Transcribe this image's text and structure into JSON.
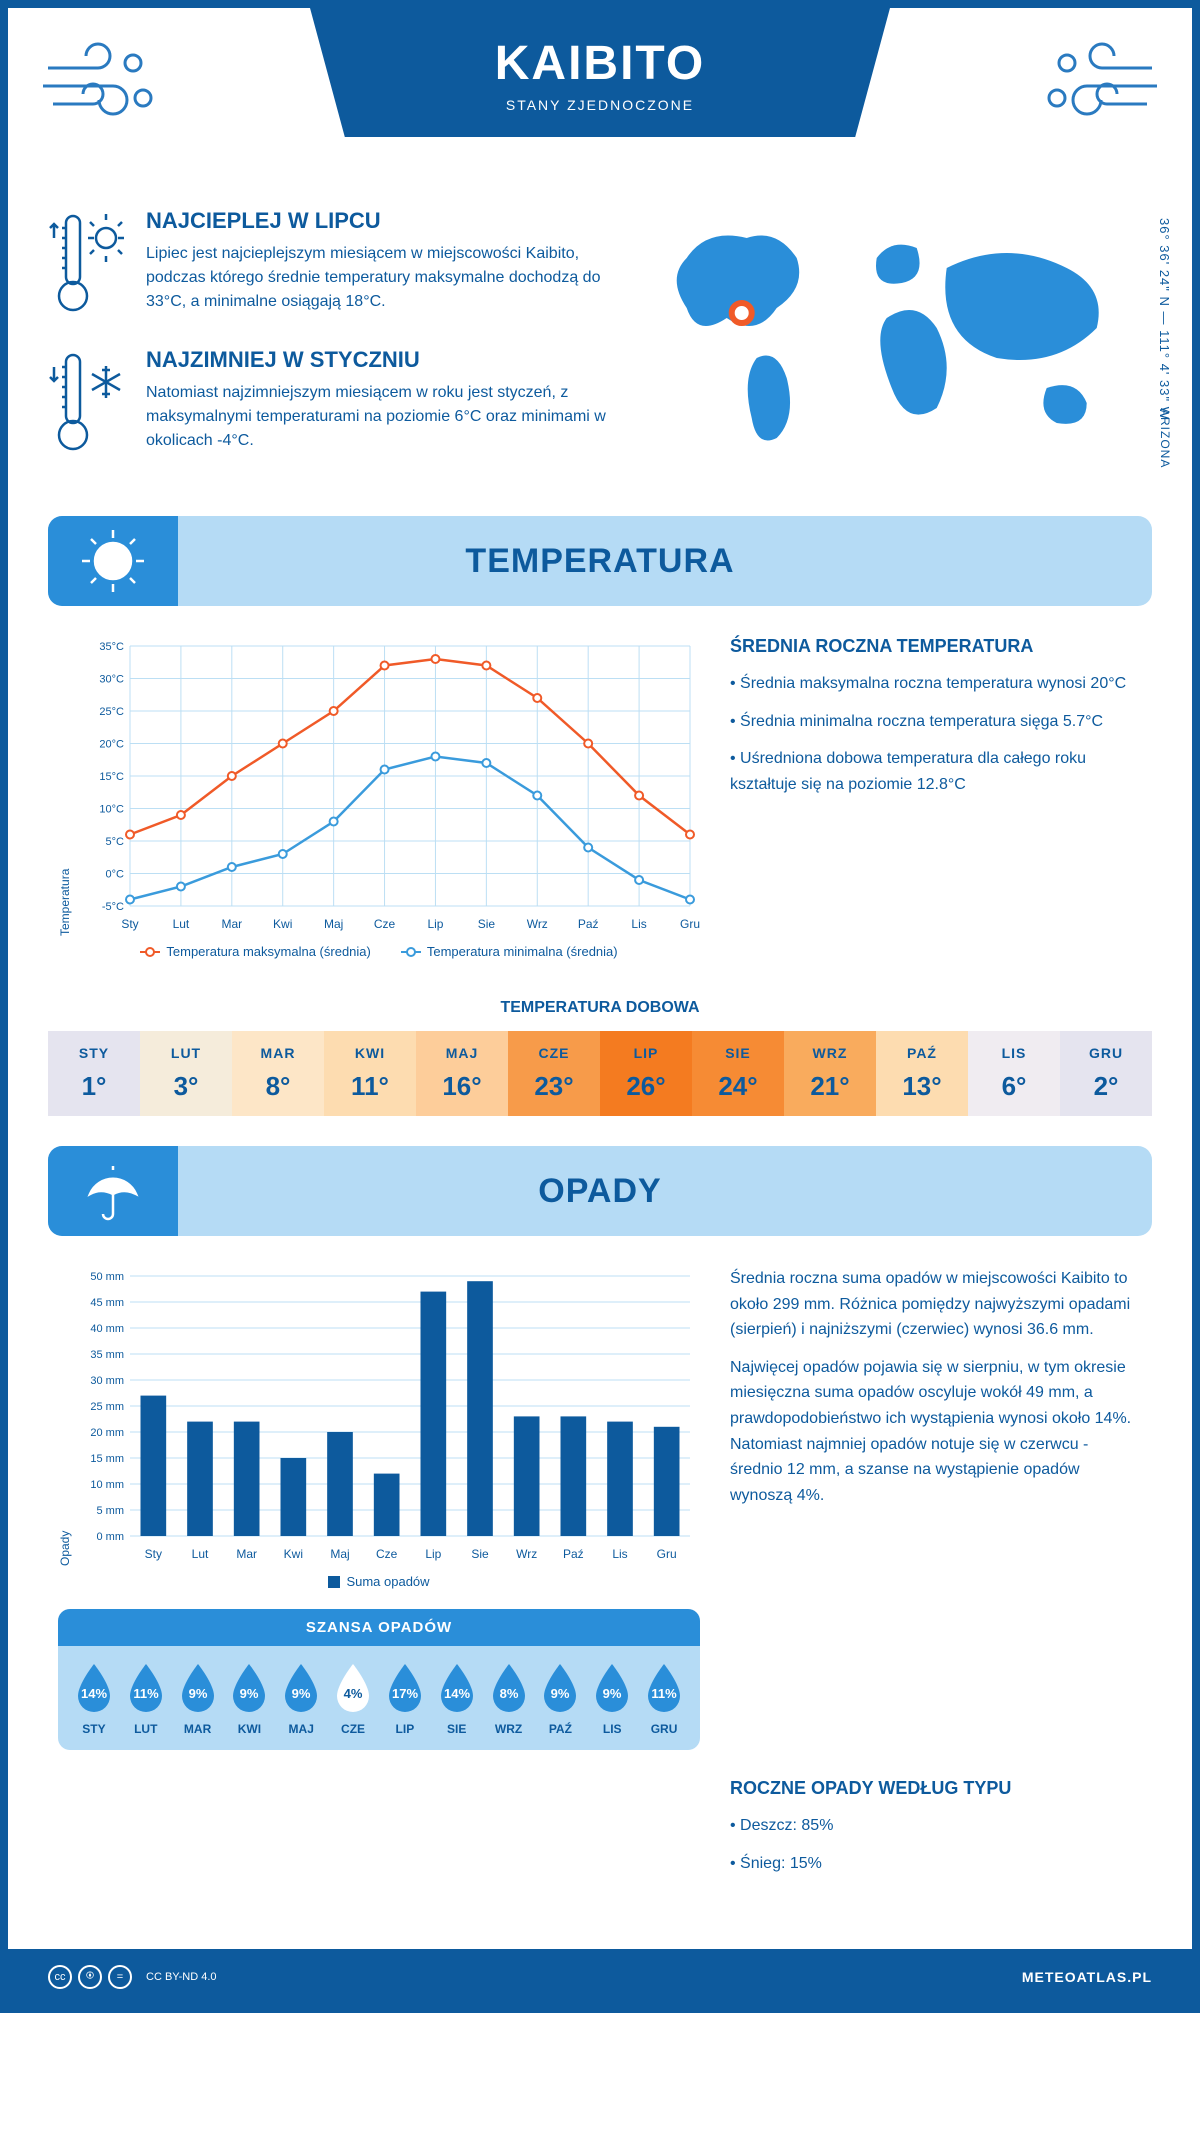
{
  "header": {
    "title": "KAIBITO",
    "subtitle": "STANY ZJEDNOCZONE"
  },
  "coords": "36° 36' 24\" N — 111° 4' 33\" W",
  "region": "ARIZONA",
  "hottest": {
    "title": "NAJCIEPLEJ W LIPCU",
    "body": "Lipiec jest najcieplejszym miesiącem w miejscowości Kaibito, podczas którego średnie temperatury maksymalne dochodzą do 33°C, a minimalne osiągają 18°C."
  },
  "coldest": {
    "title": "NAJZIMNIEJ W STYCZNIU",
    "body": "Natomiast najzimniejszym miesiącem w roku jest styczeń, z maksymalnymi temperaturami na poziomie 6°C oraz minimami w okolicach -4°C."
  },
  "temp_section": {
    "title": "TEMPERATURA",
    "chart": {
      "y_label": "Temperatura",
      "y_ticks": [
        "-5°C",
        "0°C",
        "5°C",
        "10°C",
        "15°C",
        "20°C",
        "25°C",
        "30°C",
        "35°C"
      ],
      "y_min": -5,
      "y_max": 35,
      "months": [
        "Sty",
        "Lut",
        "Mar",
        "Kwi",
        "Maj",
        "Cze",
        "Lip",
        "Sie",
        "Wrz",
        "Paź",
        "Lis",
        "Gru"
      ],
      "max_series": [
        6,
        9,
        15,
        20,
        25,
        32,
        33,
        32,
        27,
        20,
        12,
        6
      ],
      "min_series": [
        -4,
        -2,
        1,
        3,
        8,
        16,
        18,
        17,
        12,
        4,
        -1,
        -4
      ],
      "max_color": "#f05a28",
      "min_color": "#3a9bdc",
      "grid_color": "#bcdff4",
      "legend_max": "Temperatura maksymalna (średnia)",
      "legend_min": "Temperatura minimalna (średnia)"
    },
    "avg_title": "ŚREDNIA ROCZNA TEMPERATURA",
    "avg_bullets": [
      "• Średnia maksymalna roczna temperatura wynosi 20°C",
      "• Średnia minimalna roczna temperatura sięga 5.7°C",
      "• Uśredniona dobowa temperatura dla całego roku kształtuje się na poziomie 12.8°C"
    ],
    "dobowa_title": "TEMPERATURA DOBOWA",
    "dobowa": {
      "months": [
        "STY",
        "LUT",
        "MAR",
        "KWI",
        "MAJ",
        "CZE",
        "LIP",
        "SIE",
        "WRZ",
        "PAŹ",
        "LIS",
        "GRU"
      ],
      "values": [
        "1°",
        "3°",
        "8°",
        "11°",
        "16°",
        "23°",
        "26°",
        "24°",
        "21°",
        "13°",
        "6°",
        "2°"
      ],
      "colors": [
        "#e5e4ef",
        "#f5ecdb",
        "#fde6c7",
        "#fddcb0",
        "#fdcd9a",
        "#f79b4a",
        "#f47b20",
        "#f68b34",
        "#f9ab5d",
        "#fddcb0",
        "#f0ecf1",
        "#e5e4ef"
      ]
    }
  },
  "rain_section": {
    "title": "OPADY",
    "chart": {
      "y_label": "Opady",
      "y_ticks": [
        "0 mm",
        "5 mm",
        "10 mm",
        "15 mm",
        "20 mm",
        "25 mm",
        "30 mm",
        "35 mm",
        "40 mm",
        "45 mm",
        "50 mm"
      ],
      "y_max": 50,
      "months": [
        "Sty",
        "Lut",
        "Mar",
        "Kwi",
        "Maj",
        "Cze",
        "Lip",
        "Sie",
        "Wrz",
        "Paź",
        "Lis",
        "Gru"
      ],
      "values": [
        27,
        22,
        22,
        15,
        20,
        12,
        47,
        49,
        23,
        23,
        22,
        21
      ],
      "bar_color": "#0d5a9d",
      "grid_color": "#bcdff4",
      "legend": "Suma opadów"
    },
    "paragraphs": [
      "Średnia roczna suma opadów w miejscowości Kaibito to około 299 mm. Różnica pomiędzy najwyższymi opadami (sierpień) i najniższymi (czerwiec) wynosi 36.6 mm.",
      "Najwięcej opadów pojawia się w sierpniu, w tym okresie miesięczna suma opadów oscyluje wokół 49 mm, a prawdopodobieństwo ich wystąpienia wynosi około 14%. Natomiast najmniej opadów notuje się w czerwcu - średnio 12 mm, a szanse na wystąpienie opadów wynoszą 4%."
    ],
    "chance_title": "SZANSA OPADÓW",
    "chance": {
      "months": [
        "STY",
        "LUT",
        "MAR",
        "KWI",
        "MAJ",
        "CZE",
        "LIP",
        "SIE",
        "WRZ",
        "PAŹ",
        "LIS",
        "GRU"
      ],
      "values": [
        "14%",
        "11%",
        "9%",
        "9%",
        "9%",
        "4%",
        "17%",
        "14%",
        "8%",
        "9%",
        "9%",
        "11%"
      ],
      "min_index": 5,
      "drop_color": "#2a8ed9",
      "drop_min_color": "#ffffff"
    },
    "type_title": "ROCZNE OPADY WEDŁUG TYPU",
    "type_bullets": [
      "• Deszcz: 85%",
      "• Śnieg: 15%"
    ]
  },
  "footer": {
    "license": "CC BY-ND 4.0",
    "site": "METEOATLAS.PL"
  }
}
